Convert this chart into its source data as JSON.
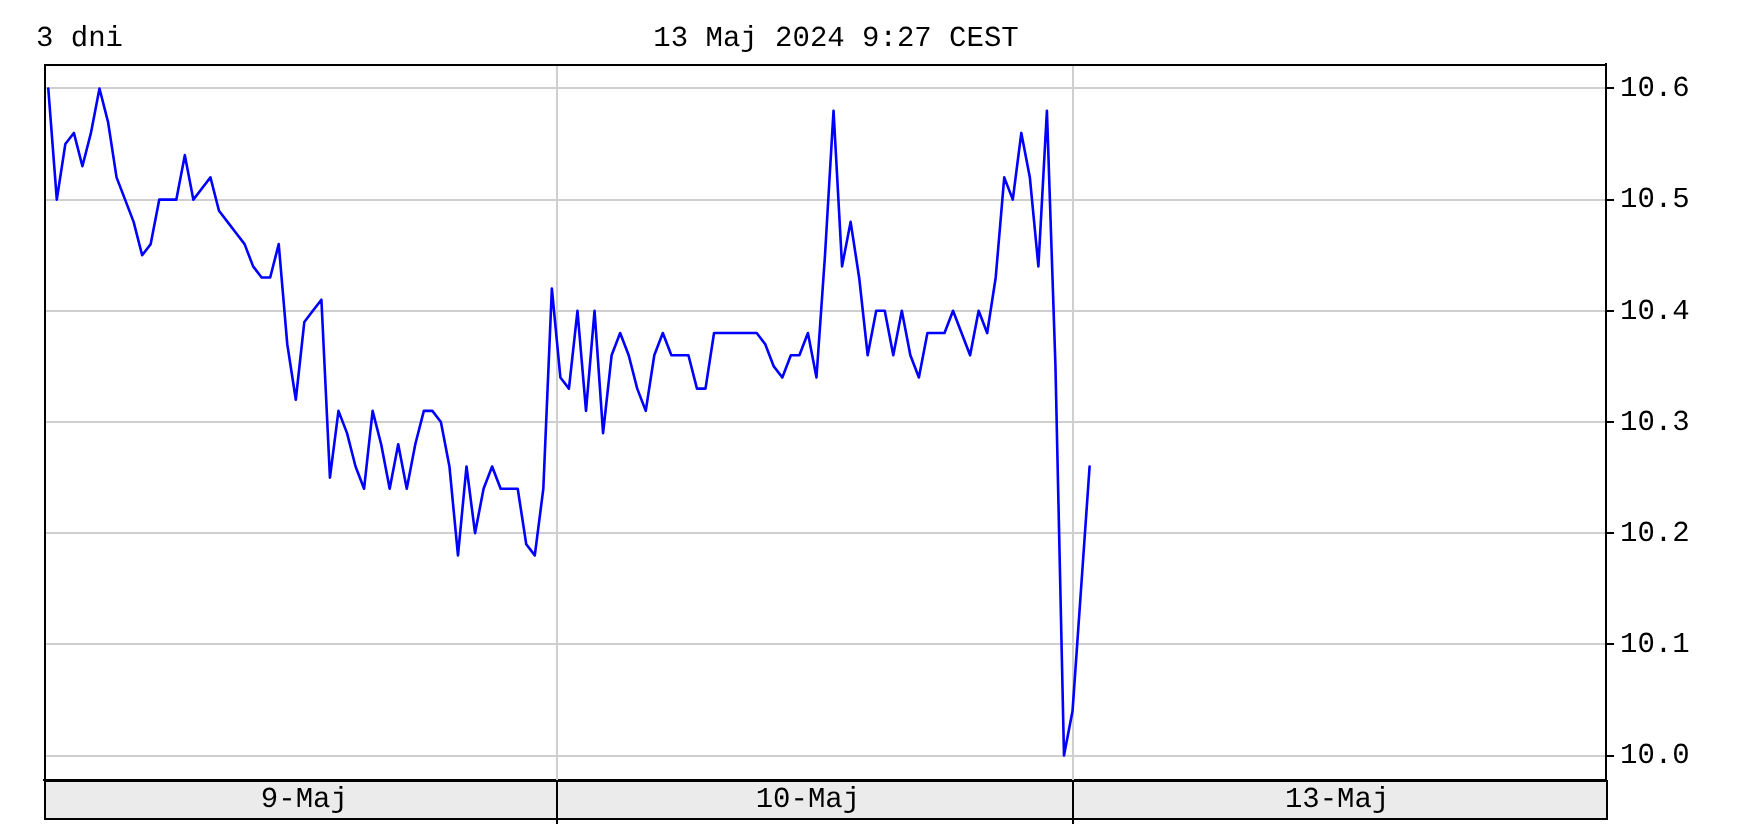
{
  "chart_data": {
    "type": "line",
    "title": "3 dni",
    "subtitle": "13 Maj 2024 9:27 CEST",
    "categories": [
      null,
      null,
      null,
      null,
      null,
      null,
      null,
      null,
      null,
      null,
      null,
      null,
      null,
      null,
      null,
      null,
      null,
      null,
      null,
      null,
      null,
      null,
      null,
      null,
      null,
      null,
      null,
      null,
      null,
      null,
      "9-Maj",
      null,
      null,
      null,
      null,
      null,
      null,
      null,
      null,
      null,
      null,
      null,
      null,
      null,
      null,
      null,
      null,
      null,
      null,
      null,
      null,
      null,
      null,
      null,
      null,
      null,
      null,
      null,
      null,
      null,
      null,
      null,
      null,
      null,
      null,
      null,
      null,
      null,
      null,
      null,
      null,
      null,
      null,
      null,
      null,
      null,
      null,
      null,
      null,
      null,
      null,
      null,
      null,
      null,
      null,
      null,
      null,
      null,
      null,
      "10-Maj",
      null,
      null,
      null,
      null,
      null,
      null,
      null,
      null,
      null,
      null,
      null,
      null,
      null,
      null,
      null,
      null,
      null,
      null,
      null,
      null,
      null,
      null,
      null,
      null,
      null,
      null,
      null,
      null,
      null,
      null,
      null,
      null,
      null,
      null,
      null,
      null,
      null,
      null,
      null,
      null,
      null,
      null,
      null,
      null,
      null,
      null,
      null,
      null,
      null,
      null,
      null,
      null,
      null,
      null,
      null,
      null,
      null,
      null,
      null,
      null,
      null,
      "13-Maj",
      null,
      null,
      null,
      null,
      null,
      null,
      null,
      null,
      null,
      null,
      null,
      null,
      null,
      null,
      null,
      null,
      null,
      null,
      null,
      null,
      null,
      null,
      null,
      null,
      null,
      null,
      null,
      null,
      null,
      null,
      null
    ],
    "values": [
      10.6,
      10.5,
      10.55,
      10.56,
      10.53,
      10.56,
      10.6,
      10.57,
      10.52,
      10.5,
      10.48,
      10.45,
      10.46,
      10.5,
      10.5,
      10.5,
      10.54,
      10.5,
      10.51,
      10.52,
      10.49,
      10.48,
      10.47,
      10.46,
      10.44,
      10.43,
      10.43,
      10.46,
      10.37,
      10.32,
      10.39,
      10.4,
      10.41,
      10.25,
      10.31,
      10.29,
      10.26,
      10.24,
      10.31,
      10.28,
      10.24,
      10.28,
      10.24,
      10.28,
      10.31,
      10.31,
      10.3,
      10.26,
      10.18,
      10.26,
      10.2,
      10.24,
      10.26,
      10.24,
      10.24,
      10.24,
      10.19,
      10.18,
      10.24,
      10.42,
      10.34,
      10.33,
      10.4,
      10.31,
      10.4,
      10.29,
      10.36,
      10.38,
      10.36,
      10.33,
      10.31,
      10.36,
      10.38,
      10.36,
      10.36,
      10.36,
      10.33,
      10.33,
      10.38,
      10.38,
      10.38,
      10.38,
      10.38,
      10.38,
      10.37,
      10.35,
      10.34,
      10.36,
      10.36,
      10.38,
      10.34,
      10.45,
      10.58,
      10.44,
      10.48,
      10.43,
      10.36,
      10.4,
      10.4,
      10.36,
      10.4,
      10.36,
      10.34,
      10.38,
      10.38,
      10.38,
      10.4,
      10.38,
      10.36,
      10.4,
      10.38,
      10.43,
      10.52,
      10.5,
      10.56,
      10.52,
      10.44,
      10.58,
      10.35,
      10.0,
      10.04,
      10.15,
      10.26,
      null,
      null,
      null,
      null,
      null,
      null,
      null,
      null,
      null,
      null,
      null,
      null,
      null,
      null,
      null,
      null,
      null,
      null,
      null,
      null,
      null,
      null,
      null,
      null,
      null,
      null,
      null,
      null,
      null,
      null,
      null,
      null,
      null,
      null,
      null,
      null,
      null,
      null,
      null,
      null,
      null,
      null,
      null,
      null,
      null,
      null,
      null,
      null,
      null,
      null,
      null,
      null,
      null,
      null,
      null,
      null,
      null,
      null,
      null,
      null
    ],
    "color": "#0000ff",
    "marker": "none",
    "ylim": [
      9.978,
      10.622
    ],
    "yticks": [
      {
        "value": 10,
        "label": "10.0"
      },
      10.1,
      10.2,
      10.3,
      10.4,
      10.5,
      10.6
    ],
    "grid": true
  }
}
